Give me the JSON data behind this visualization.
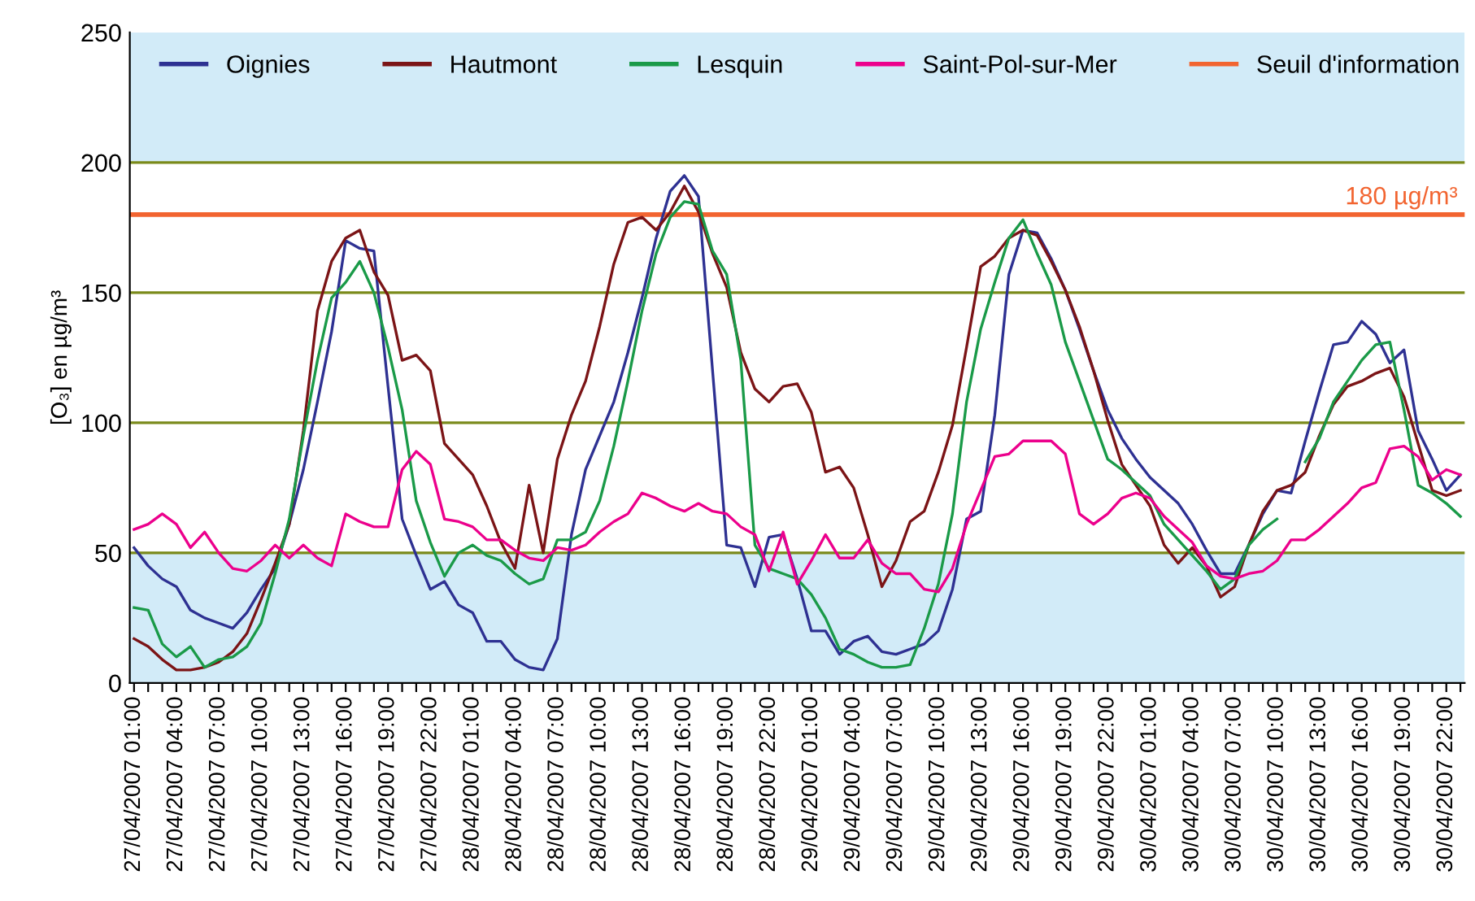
{
  "chart_data": {
    "type": "line",
    "ylabel": "[O₃] en µg/m³",
    "categories": [
      "27/04/2007 01:00",
      null,
      null,
      "27/04/2007 04:00",
      null,
      null,
      "27/04/2007 07:00",
      null,
      null,
      "27/04/2007 10:00",
      null,
      null,
      "27/04/2007 13:00",
      null,
      null,
      "27/04/2007 16:00",
      null,
      null,
      "27/04/2007 19:00",
      null,
      null,
      "27/04/2007 22:00",
      null,
      null,
      "28/04/2007 01:00",
      null,
      null,
      "28/04/2007 04:00",
      null,
      null,
      "28/04/2007 07:00",
      null,
      null,
      "28/04/2007 10:00",
      null,
      null,
      "28/04/2007 13:00",
      null,
      null,
      "28/04/2007 16:00",
      null,
      null,
      "28/04/2007 19:00",
      null,
      null,
      "28/04/2007 22:00",
      null,
      null,
      "29/04/2007 01:00",
      null,
      null,
      "29/04/2007 04:00",
      null,
      null,
      "29/04/2007 07:00",
      null,
      null,
      "29/04/2007 10:00",
      null,
      null,
      "29/04/2007 13:00",
      null,
      null,
      "29/04/2007 16:00",
      null,
      null,
      "29/04/2007 19:00",
      null,
      null,
      "29/04/2007 22:00",
      null,
      null,
      "30/04/2007 01:00",
      null,
      null,
      "30/04/2007 04:00",
      null,
      null,
      "30/04/2007 07:00",
      null,
      null,
      "30/04/2007 10:00",
      null,
      null,
      "30/04/2007 13:00",
      null,
      null,
      "30/04/2007 16:00",
      null,
      null,
      "30/04/2007 19:00",
      null,
      null,
      "30/04/2007 22:00",
      null
    ],
    "series": [
      {
        "name": "Oignies",
        "color": "#2e3192",
        "values": [
          52,
          45,
          40,
          37,
          28,
          25,
          23,
          21,
          27,
          36,
          44,
          61,
          82,
          108,
          135,
          170,
          167,
          166,
          114,
          63,
          49,
          36,
          39,
          30,
          27,
          16,
          16,
          9,
          6,
          5,
          17,
          57,
          82,
          95,
          108,
          127,
          148,
          171,
          189,
          195,
          187,
          120,
          53,
          52,
          37,
          56,
          57,
          40,
          20,
          20,
          11,
          16,
          18,
          12,
          11,
          13,
          15,
          20,
          36,
          63,
          66,
          103,
          157,
          174,
          173,
          163,
          151,
          136,
          120,
          105,
          94,
          86,
          79,
          74,
          69,
          61,
          51,
          42,
          42,
          53,
          65,
          74,
          73,
          93,
          112,
          130,
          131,
          139,
          134,
          123,
          128,
          97,
          86,
          74,
          80
        ]
      },
      {
        "name": "Hautmont",
        "color": "#7b1416",
        "values": [
          17,
          14,
          9,
          5,
          5,
          6,
          8,
          12,
          19,
          32,
          46,
          61,
          97,
          143,
          162,
          171,
          174,
          158,
          149,
          124,
          126,
          120,
          92,
          86,
          80,
          68,
          54,
          44,
          76,
          50,
          86,
          103,
          116,
          137,
          161,
          177,
          179,
          174,
          181,
          191,
          181,
          165,
          152,
          127,
          113,
          108,
          114,
          115,
          104,
          81,
          83,
          75,
          57,
          37,
          47,
          62,
          66,
          81,
          99,
          129,
          160,
          164,
          171,
          174,
          172,
          162,
          151,
          137,
          120,
          101,
          84,
          76,
          68,
          53,
          46,
          52,
          45,
          33,
          37,
          53,
          66,
          74,
          76,
          81,
          95,
          107,
          114,
          116,
          119,
          121,
          110,
          92,
          74,
          72,
          74
        ]
      },
      {
        "name": "Lesquin",
        "color": "#1a9a48",
        "values": [
          29,
          28,
          15,
          10,
          14,
          6,
          9,
          10,
          14,
          23,
          42,
          63,
          95,
          124,
          148,
          154,
          162,
          150,
          129,
          105,
          70,
          54,
          41,
          50,
          53,
          49,
          47,
          42,
          38,
          40,
          55,
          55,
          58,
          70,
          91,
          116,
          143,
          165,
          179,
          185,
          184,
          166,
          157,
          124,
          53,
          44,
          42,
          40,
          34,
          25,
          13,
          11,
          8,
          6,
          6,
          7,
          21,
          38,
          65,
          108,
          136,
          154,
          171,
          178,
          165,
          153,
          131,
          116,
          101,
          86,
          82,
          77,
          72,
          61,
          55,
          49,
          43,
          36,
          40,
          53,
          59,
          63,
          null,
          85,
          94,
          108,
          116,
          124,
          130,
          131,
          105,
          76,
          73,
          69,
          64
        ]
      },
      {
        "name": "Saint-Pol-sur-Mer",
        "color": "#ec008c",
        "values": [
          59,
          61,
          65,
          61,
          52,
          58,
          50,
          44,
          43,
          47,
          53,
          48,
          53,
          48,
          45,
          65,
          62,
          60,
          60,
          82,
          89,
          84,
          63,
          62,
          60,
          55,
          55,
          51,
          48,
          47,
          52,
          51,
          53,
          58,
          62,
          65,
          73,
          71,
          68,
          66,
          69,
          66,
          65,
          60,
          57,
          43,
          58,
          38,
          47,
          57,
          48,
          48,
          55,
          46,
          42,
          42,
          36,
          35,
          44,
          61,
          74,
          87,
          88,
          93,
          93,
          93,
          88,
          65,
          61,
          65,
          71,
          73,
          71,
          64,
          59,
          54,
          45,
          41,
          40,
          42,
          43,
          47,
          55,
          55,
          59,
          64,
          69,
          75,
          77,
          90,
          91,
          87,
          78,
          82,
          80
        ]
      }
    ],
    "ref_lines": [
      {
        "axis": "y",
        "value": 180,
        "label": "Seuil d'information",
        "color": "#f26430"
      }
    ],
    "bands": [
      {
        "axis": "y",
        "from": 200,
        "to": 250,
        "color": "#d2ebf8"
      },
      {
        "axis": "y",
        "from": 0,
        "to": 50,
        "color": "#d2ebf8"
      }
    ],
    "annotations": [
      {
        "text": "180 µg/m³",
        "y": 180
      }
    ],
    "ylim": [
      0,
      250
    ],
    "yticks": [
      0,
      50,
      100,
      150,
      200,
      250
    ],
    "grid": "y",
    "legend": "top",
    "marker": "none",
    "line_style": "solid"
  }
}
